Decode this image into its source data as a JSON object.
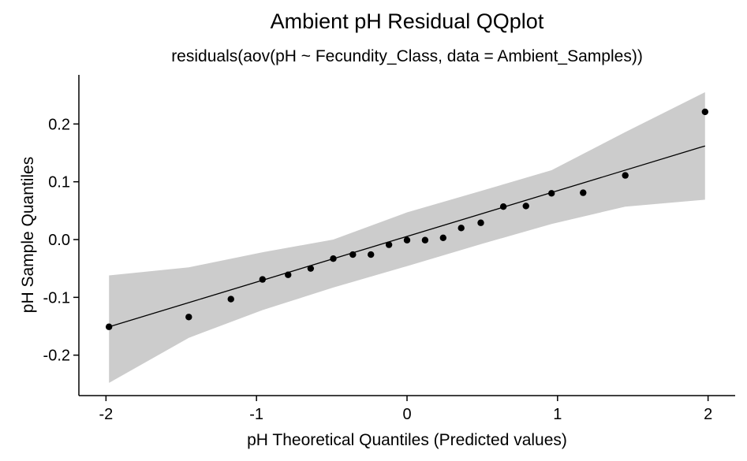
{
  "chart_data": {
    "type": "scatter",
    "title": "Ambient pH Residual QQplot",
    "subtitle": "residuals(aov(pH ~ Fecundity_Class, data = Ambient_Samples))",
    "xlabel": "pH Theoretical Quantiles (Predicted values)",
    "ylabel": "pH Sample Quantiles",
    "xlim": [
      -2.18,
      2.18
    ],
    "ylim": [
      -0.27,
      0.285
    ],
    "x_ticks": [
      "-2",
      "-1",
      "0",
      "1",
      "2"
    ],
    "x_tick_values": [
      -2,
      -1,
      0,
      1,
      2
    ],
    "y_ticks": [
      "-0.2",
      "-0.1",
      "0.0",
      "0.1",
      "0.2"
    ],
    "y_tick_values": [
      -0.2,
      -0.1,
      0.0,
      0.1,
      0.2
    ],
    "grid": false,
    "points": [
      {
        "x": -1.98,
        "y": -0.151
      },
      {
        "x": -1.45,
        "y": -0.134
      },
      {
        "x": -1.17,
        "y": -0.103
      },
      {
        "x": -0.96,
        "y": -0.069
      },
      {
        "x": -0.79,
        "y": -0.061
      },
      {
        "x": -0.64,
        "y": -0.05
      },
      {
        "x": -0.49,
        "y": -0.033
      },
      {
        "x": -0.36,
        "y": -0.026
      },
      {
        "x": -0.24,
        "y": -0.026
      },
      {
        "x": -0.12,
        "y": -0.009
      },
      {
        "x": 0.0,
        "y": -0.001
      },
      {
        "x": 0.12,
        "y": -0.001
      },
      {
        "x": 0.24,
        "y": 0.003
      },
      {
        "x": 0.36,
        "y": 0.02
      },
      {
        "x": 0.49,
        "y": 0.029
      },
      {
        "x": 0.64,
        "y": 0.057
      },
      {
        "x": 0.79,
        "y": 0.058
      },
      {
        "x": 0.96,
        "y": 0.08
      },
      {
        "x": 1.17,
        "y": 0.081
      },
      {
        "x": 1.45,
        "y": 0.111
      },
      {
        "x": 1.98,
        "y": 0.221
      }
    ],
    "reference_line": {
      "x": [
        -1.98,
        1.98
      ],
      "y": [
        -0.151,
        0.162
      ]
    },
    "confidence_band": {
      "x": [
        -1.98,
        -1.45,
        -0.96,
        -0.49,
        0.0,
        0.49,
        0.96,
        1.45,
        1.98
      ],
      "lower": [
        -0.248,
        -0.17,
        -0.122,
        -0.083,
        -0.046,
        -0.008,
        0.027,
        0.057,
        0.069
      ],
      "upper": [
        -0.062,
        -0.048,
        -0.022,
        0.0,
        0.047,
        0.084,
        0.12,
        0.186,
        0.255
      ]
    },
    "colors": {
      "points": "#000000",
      "line": "#000000",
      "band": "#cccccc"
    }
  }
}
